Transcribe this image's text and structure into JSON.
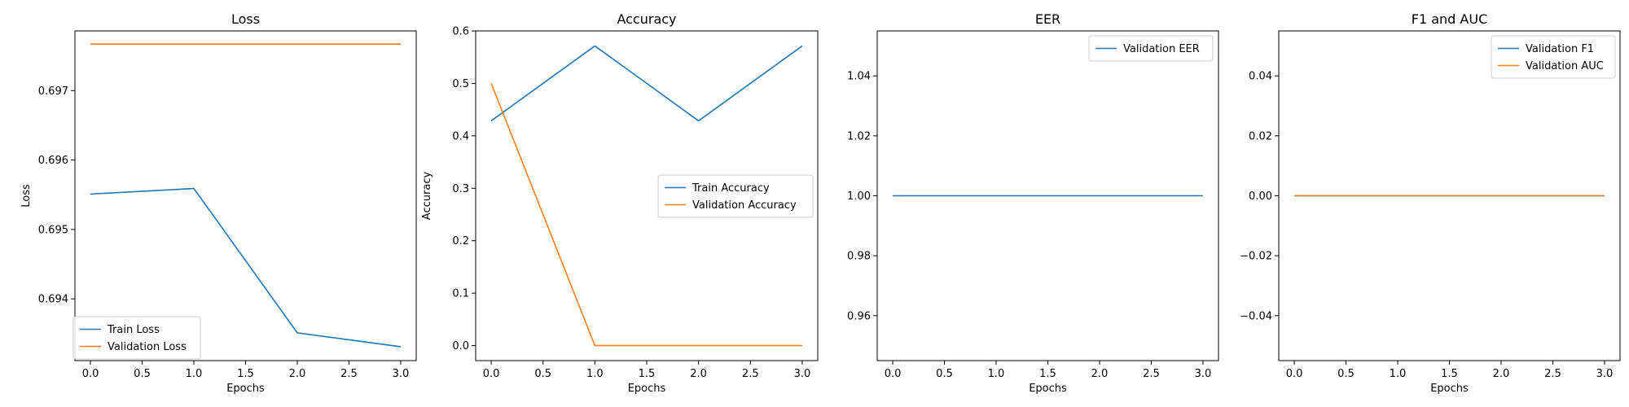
{
  "colors": {
    "series1": "#1f77b4",
    "series2": "#ff7f0e"
  },
  "chart_data": [
    {
      "type": "line",
      "title": "Loss",
      "xlabel": "Epochs",
      "ylabel": "Loss",
      "xlim": [
        -0.15,
        3.15
      ],
      "ylim": [
        0.69311,
        0.69786
      ],
      "xticks": [
        0.0,
        0.5,
        1.0,
        1.5,
        2.0,
        2.5,
        3.0
      ],
      "xtick_labels": [
        "0.0",
        "0.5",
        "1.0",
        "1.5",
        "2.0",
        "2.5",
        "3.0"
      ],
      "yticks": [
        0.694,
        0.695,
        0.696,
        0.697
      ],
      "ytick_labels": [
        "0.694",
        "0.695",
        "0.696",
        "0.697"
      ],
      "legend": "lower-left",
      "series": [
        {
          "name": "Train Loss",
          "x": [
            0,
            1,
            2,
            3
          ],
          "y": [
            0.69551,
            0.69559,
            0.69351,
            0.69331
          ]
        },
        {
          "name": "Validation Loss",
          "x": [
            0,
            1,
            2,
            3
          ],
          "y": [
            0.69767,
            0.69767,
            0.69767,
            0.69767
          ]
        }
      ]
    },
    {
      "type": "line",
      "title": "Accuracy",
      "xlabel": "Epochs",
      "ylabel": "Accuracy",
      "xlim": [
        -0.15,
        3.15
      ],
      "ylim": [
        -0.0286,
        0.6
      ],
      "xticks": [
        0.0,
        0.5,
        1.0,
        1.5,
        2.0,
        2.5,
        3.0
      ],
      "xtick_labels": [
        "0.0",
        "0.5",
        "1.0",
        "1.5",
        "2.0",
        "2.5",
        "3.0"
      ],
      "yticks": [
        0.0,
        0.1,
        0.2,
        0.3,
        0.4,
        0.5,
        0.6
      ],
      "ytick_labels": [
        "0.0",
        "0.1",
        "0.2",
        "0.3",
        "0.4",
        "0.5",
        "0.6"
      ],
      "legend": "center-right",
      "series": [
        {
          "name": "Train Accuracy",
          "x": [
            0,
            1,
            2,
            3
          ],
          "y": [
            0.4286,
            0.5714,
            0.4286,
            0.5714
          ]
        },
        {
          "name": "Validation Accuracy",
          "x": [
            0,
            1,
            2,
            3
          ],
          "y": [
            0.5,
            0.0,
            0.0,
            0.0
          ]
        }
      ]
    },
    {
      "type": "line",
      "title": "EER",
      "xlabel": "Epochs",
      "ylabel": "",
      "xlim": [
        -0.15,
        3.15
      ],
      "ylim": [
        0.945,
        1.055
      ],
      "xticks": [
        0.0,
        0.5,
        1.0,
        1.5,
        2.0,
        2.5,
        3.0
      ],
      "xtick_labels": [
        "0.0",
        "0.5",
        "1.0",
        "1.5",
        "2.0",
        "2.5",
        "3.0"
      ],
      "yticks": [
        0.96,
        0.98,
        1.0,
        1.02,
        1.04
      ],
      "ytick_labels": [
        "0.96",
        "0.98",
        "1.00",
        "1.02",
        "1.04"
      ],
      "legend": "upper-right",
      "series": [
        {
          "name": "Validation EER",
          "x": [
            0,
            1,
            2,
            3
          ],
          "y": [
            1.0,
            1.0,
            1.0,
            1.0
          ]
        }
      ]
    },
    {
      "type": "line",
      "title": "F1 and AUC",
      "xlabel": "Epochs",
      "ylabel": "",
      "xlim": [
        -0.15,
        3.15
      ],
      "ylim": [
        -0.055,
        0.055
      ],
      "xticks": [
        0.0,
        0.5,
        1.0,
        1.5,
        2.0,
        2.5,
        3.0
      ],
      "xtick_labels": [
        "0.0",
        "0.5",
        "1.0",
        "1.5",
        "2.0",
        "2.5",
        "3.0"
      ],
      "yticks": [
        -0.04,
        -0.02,
        0.0,
        0.02,
        0.04
      ],
      "ytick_labels": [
        "−0.04",
        "−0.02",
        "0.00",
        "0.02",
        "0.04"
      ],
      "legend": "upper-right",
      "series": [
        {
          "name": "Validation F1",
          "x": [
            0,
            1,
            2,
            3
          ],
          "y": [
            0.0,
            0.0,
            0.0,
            0.0
          ]
        },
        {
          "name": "Validation AUC",
          "x": [
            0,
            1,
            2,
            3
          ],
          "y": [
            0.0,
            0.0,
            0.0,
            0.0
          ]
        }
      ]
    }
  ]
}
